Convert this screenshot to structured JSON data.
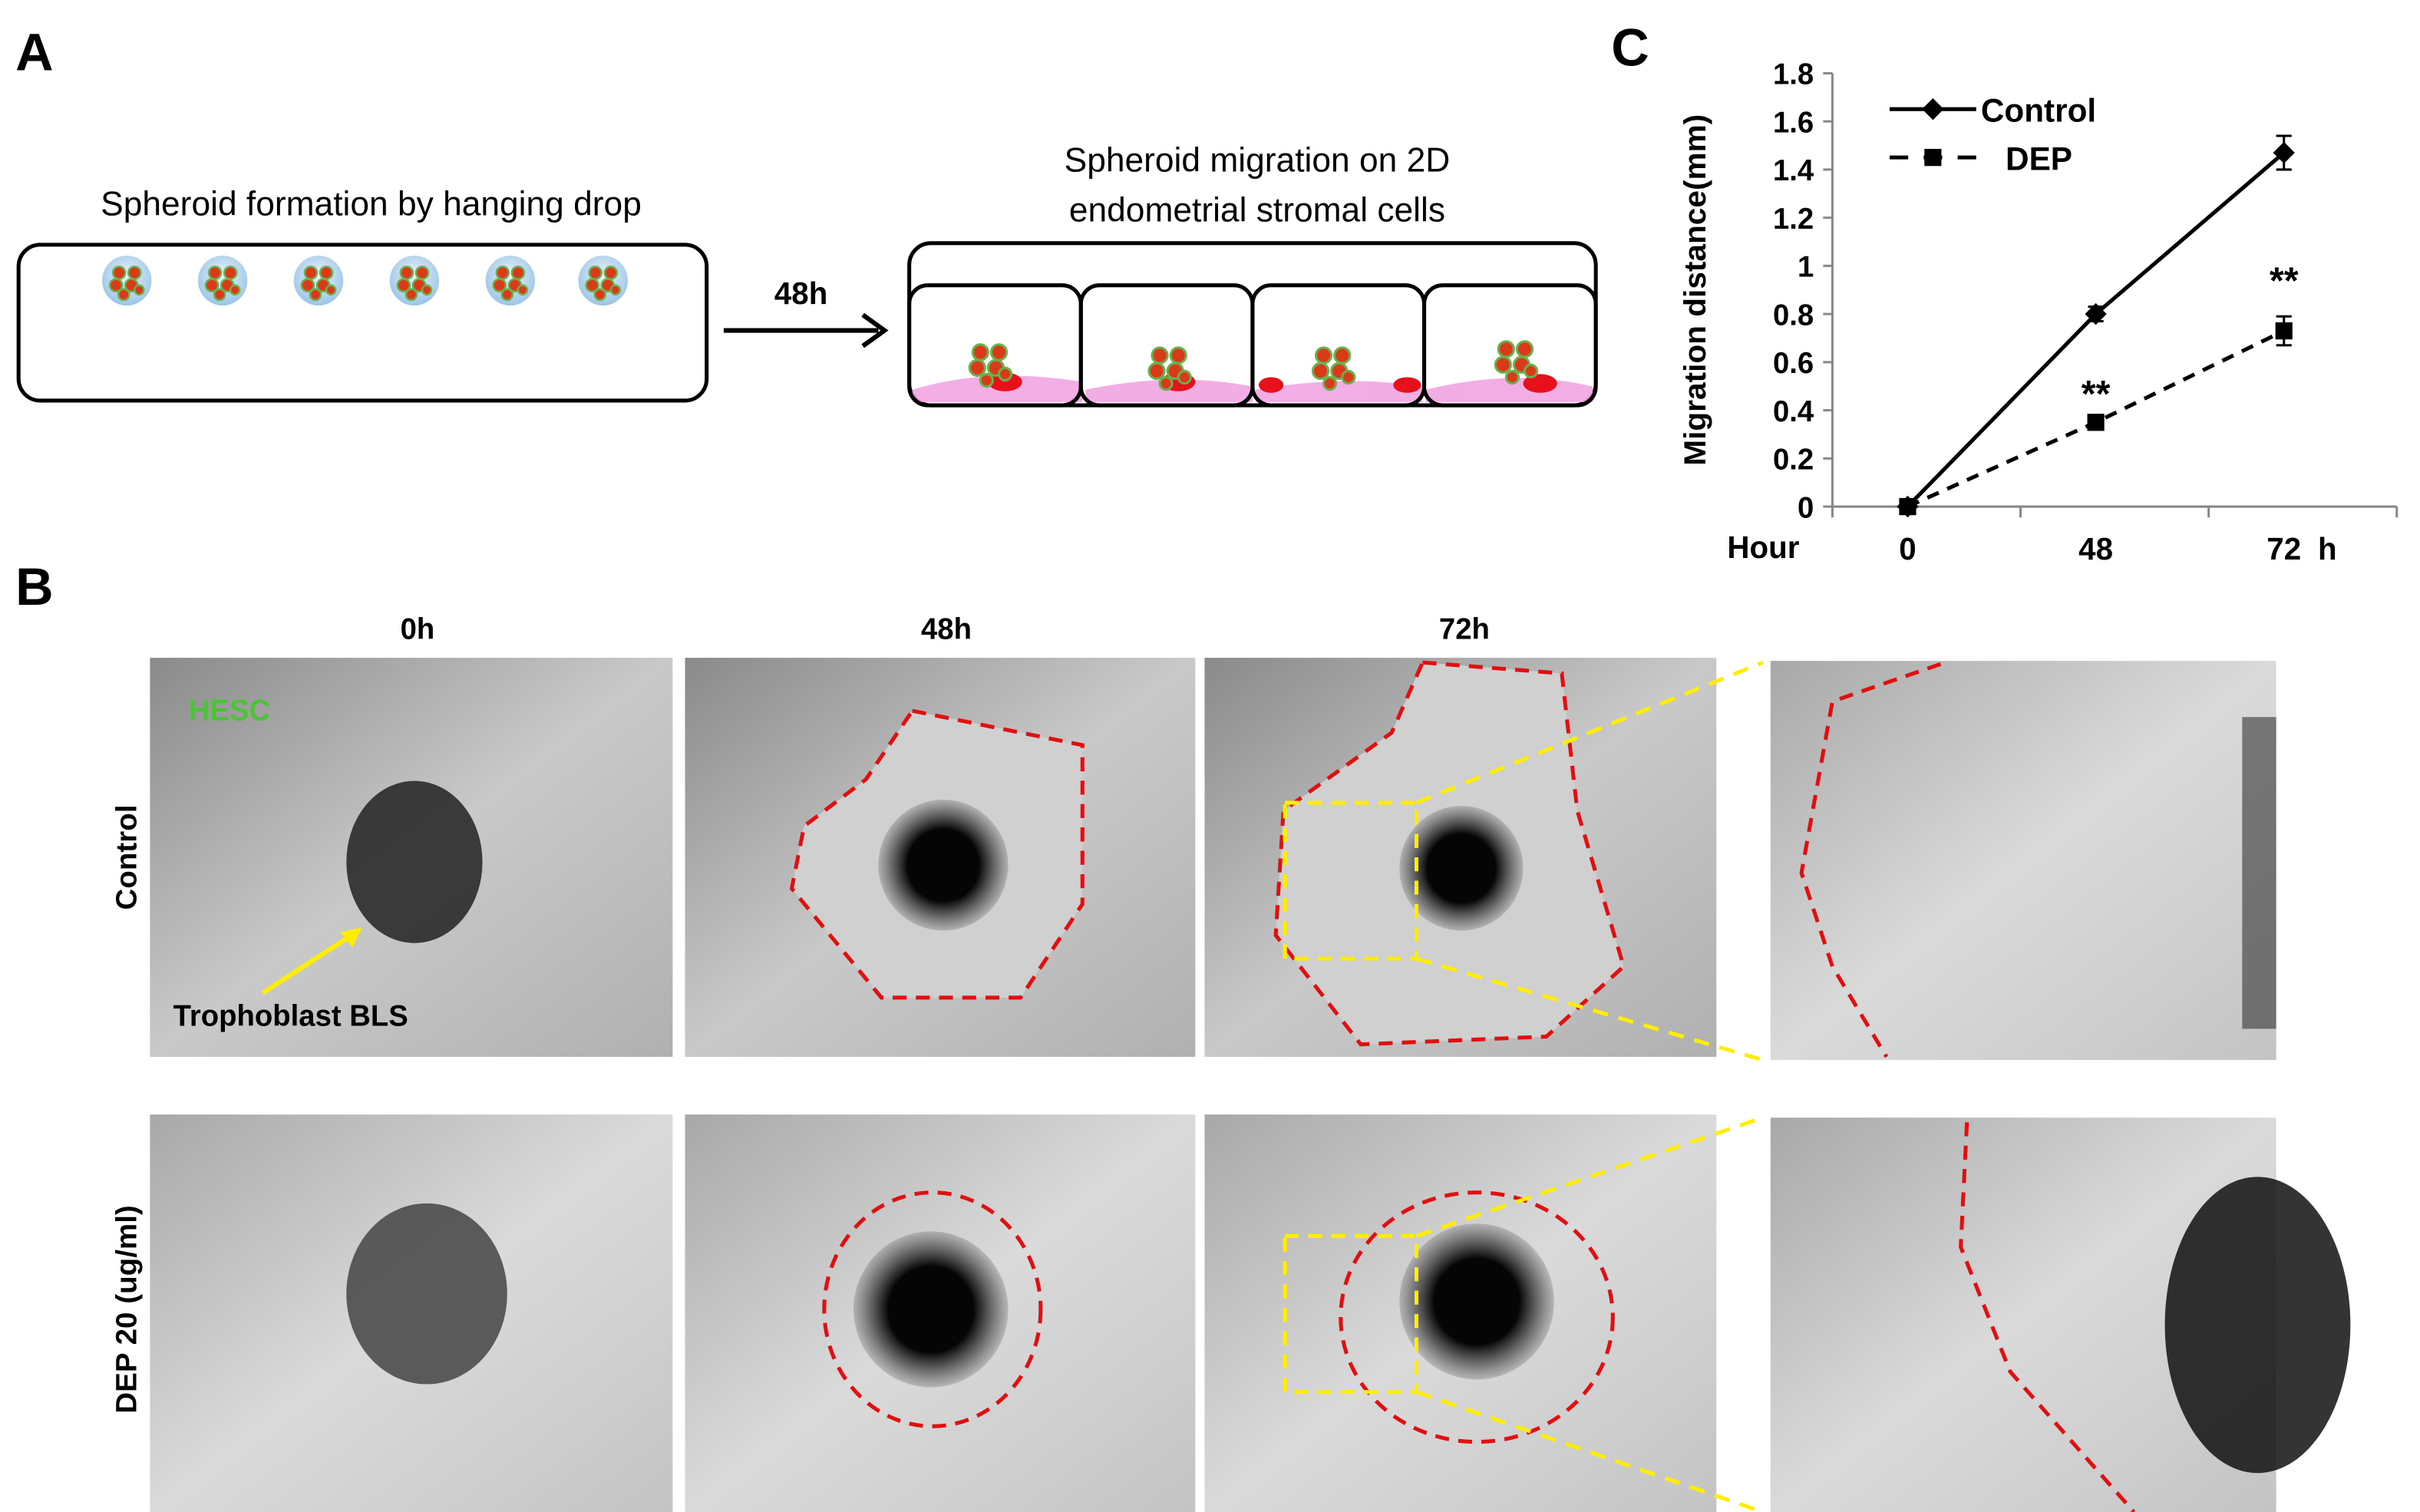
{
  "panel_a": {
    "label": "A",
    "left_title": "Spheroid formation by hanging drop",
    "arrow_label": "48h",
    "right_title": [
      "Spheroid migration on 2D",
      "endometrial stromal cells"
    ]
  },
  "panel_b": {
    "label": "B",
    "columns": [
      "0h",
      "48h",
      "72h"
    ],
    "rows": [
      "Control",
      "DEP 20 (ug/ml)"
    ],
    "cell_label": "HESC",
    "arrow_label": "Trophoblast BLS"
  },
  "panel_c_label": "C",
  "chart_data": {
    "type": "line",
    "y_label": "Migration distance(mm)",
    "x_label": "Hour",
    "x_unit": "h",
    "categories": [
      "0",
      "48",
      "72"
    ],
    "series": [
      {
        "name": "Control",
        "color": "#000000",
        "line_style": "solid",
        "marker": "diamond",
        "values": [
          0,
          0.8,
          1.47
        ],
        "errors": [
          0.02,
          0.03,
          0.07
        ]
      },
      {
        "name": "DEP",
        "color": "#000000",
        "line_style": "dashed",
        "marker": "square",
        "values": [
          0,
          0.35,
          0.73
        ],
        "errors": [
          0.02,
          0.02,
          0.06
        ]
      }
    ],
    "annotations": [
      {
        "text": "**",
        "x": "48"
      },
      {
        "text": "**",
        "x": "72"
      }
    ],
    "ylim": [
      0,
      1.8
    ],
    "yticks": [
      0,
      0.2,
      0.4,
      0.6,
      0.8,
      1,
      1.2,
      1.4,
      1.6,
      1.8
    ],
    "legend": "upper left"
  }
}
